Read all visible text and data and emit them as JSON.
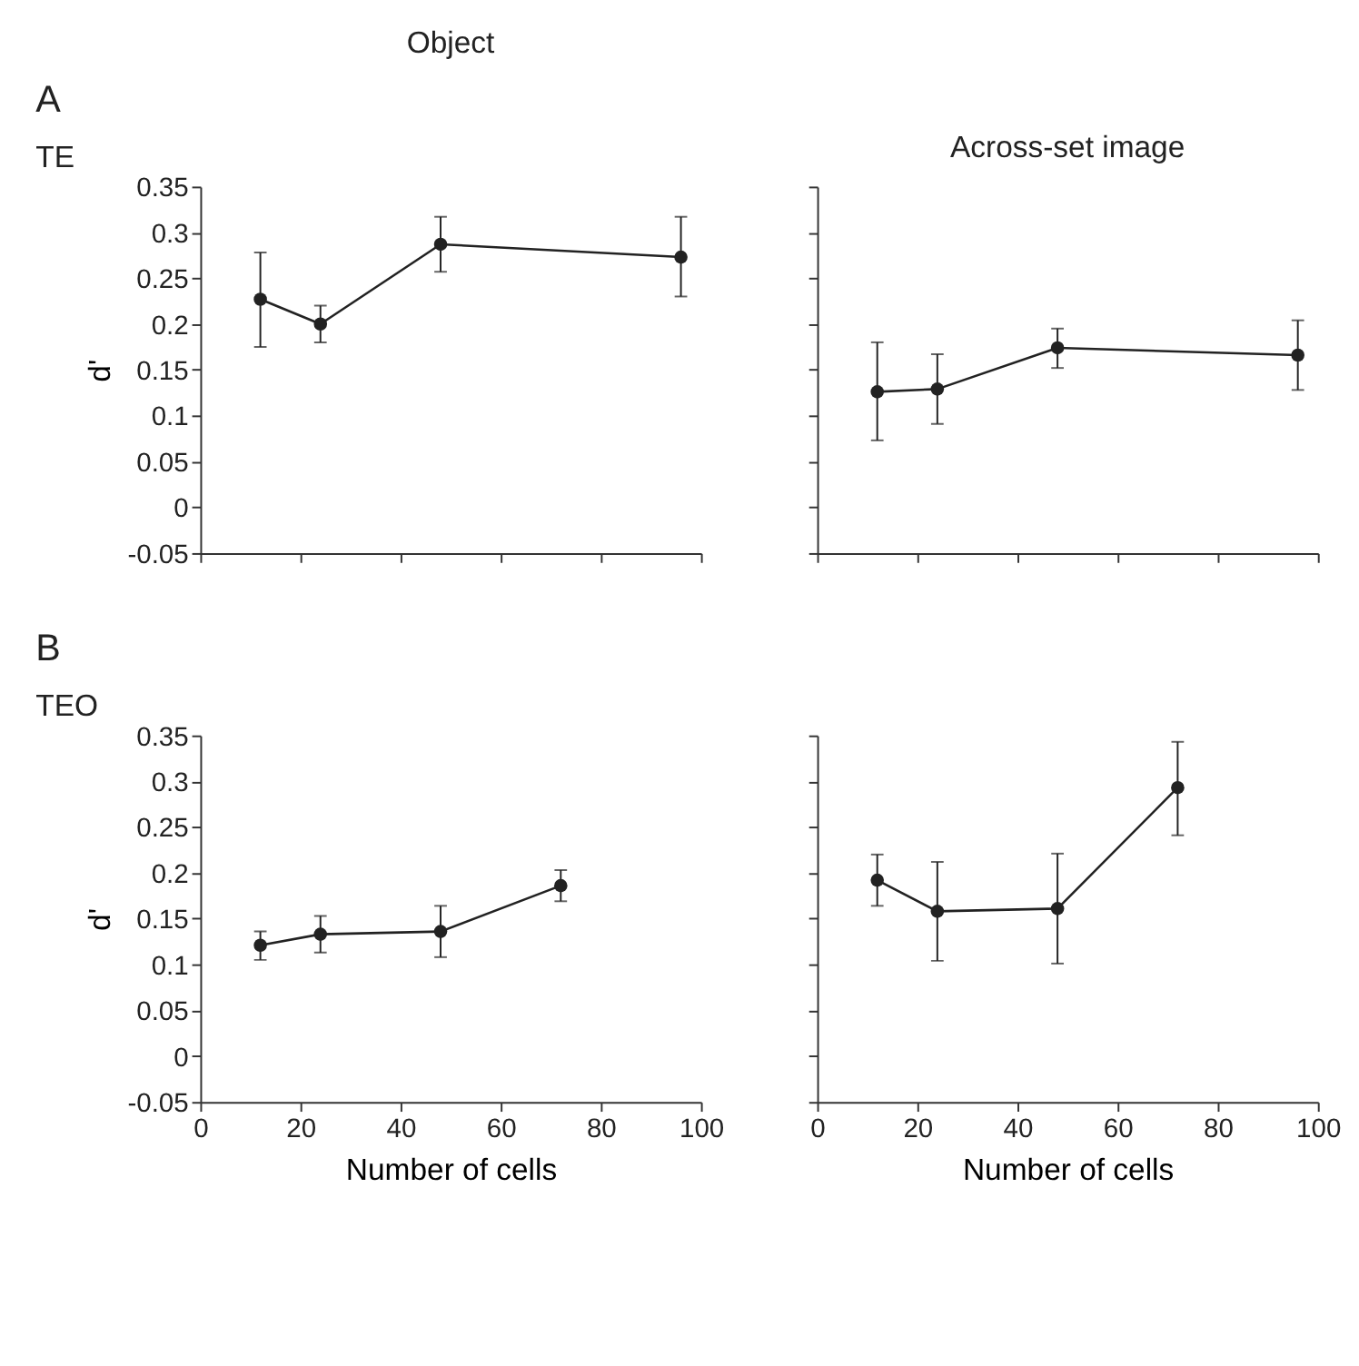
{
  "chart_data": [
    {
      "type": "line",
      "title": "Object",
      "ylabel": "d'",
      "annotations": [
        "A",
        "TE"
      ],
      "x": [
        12,
        24,
        48,
        96
      ],
      "xlim": [
        0,
        100
      ],
      "xticks": [
        0,
        20,
        40,
        60,
        80,
        100
      ],
      "ylim": [
        -0.05,
        0.35
      ],
      "yticks": [
        -0.05,
        0,
        0.05,
        0.1,
        0.15,
        0.2,
        0.25,
        0.3,
        0.35
      ],
      "tick_labels": "y",
      "marker": "circle",
      "line_style": "solid",
      "grid": false,
      "legend": false,
      "series": [
        {
          "color": "#222222",
          "values": [
            0.227,
            0.2,
            0.287,
            0.273
          ],
          "errors": [
            [
              0.175,
              0.278
            ],
            [
              0.18,
              0.22
            ],
            [
              0.257,
              0.317
            ],
            [
              0.23,
              0.317
            ]
          ]
        }
      ]
    },
    {
      "type": "line",
      "title": "Across-set image",
      "x": [
        12,
        24,
        48,
        96
      ],
      "xlim": [
        0,
        100
      ],
      "xticks": [
        0,
        20,
        40,
        60,
        80,
        100
      ],
      "ylim": [
        -0.05,
        0.35
      ],
      "yticks": [
        -0.05,
        0,
        0.05,
        0.1,
        0.15,
        0.2,
        0.25,
        0.3,
        0.35
      ],
      "tick_labels": false,
      "marker": "circle",
      "line_style": "solid",
      "grid": false,
      "legend": false,
      "series": [
        {
          "color": "#222222",
          "values": [
            0.126,
            0.129,
            0.174,
            0.166
          ],
          "errors": [
            [
              0.073,
              0.18
            ],
            [
              0.091,
              0.167
            ],
            [
              0.152,
              0.195
            ],
            [
              0.128,
              0.204
            ]
          ]
        }
      ]
    },
    {
      "type": "line",
      "xlabel": "Number of cells",
      "ylabel": "d'",
      "annotations": [
        "B",
        "TEO"
      ],
      "x": [
        12,
        24,
        48,
        72
      ],
      "xlim": [
        0,
        100
      ],
      "xticks": [
        0,
        20,
        40,
        60,
        80,
        100
      ],
      "ylim": [
        -0.05,
        0.35
      ],
      "yticks": [
        -0.05,
        0,
        0.05,
        0.1,
        0.15,
        0.2,
        0.25,
        0.3,
        0.35
      ],
      "marker": "circle",
      "line_style": "solid",
      "grid": false,
      "legend": false,
      "series": [
        {
          "color": "#222222",
          "values": [
            0.121,
            0.133,
            0.136,
            0.186
          ],
          "errors": [
            [
              0.105,
              0.136
            ],
            [
              0.113,
              0.153
            ],
            [
              0.108,
              0.164
            ],
            [
              0.169,
              0.203
            ]
          ]
        }
      ]
    },
    {
      "type": "line",
      "xlabel": "Number of cells",
      "x": [
        12,
        24,
        48,
        72
      ],
      "xlim": [
        0,
        100
      ],
      "xticks": [
        0,
        20,
        40,
        60,
        80,
        100
      ],
      "ylim": [
        -0.05,
        0.35
      ],
      "yticks": [
        -0.05,
        0,
        0.05,
        0.1,
        0.15,
        0.2,
        0.25,
        0.3,
        0.35
      ],
      "tick_labels": "x",
      "marker": "circle",
      "line_style": "solid",
      "grid": false,
      "legend": false,
      "series": [
        {
          "color": "#222222",
          "values": [
            0.192,
            0.158,
            0.161,
            0.293
          ],
          "errors": [
            [
              0.164,
              0.22
            ],
            [
              0.104,
              0.212
            ],
            [
              0.101,
              0.221
            ],
            [
              0.241,
              0.343
            ]
          ]
        }
      ]
    }
  ]
}
